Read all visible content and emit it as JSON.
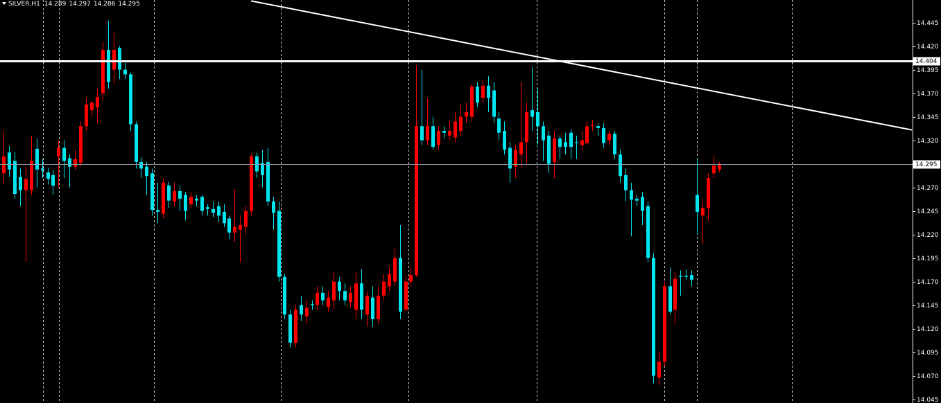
{
  "chart_data": {
    "type": "candlestick",
    "title": "SILVER,H1",
    "up_color": "#ff0000",
    "down_color": "#00e5ee",
    "ylim": [
      14.041,
      14.469
    ],
    "yticks": [
      14.445,
      {
        "value": 14.42,
        "label": "14.420"
      },
      14.395,
      {
        "value": 14.37,
        "label": "14.370"
      },
      14.345,
      {
        "value": 14.32,
        "label": "14.320"
      },
      14.295,
      {
        "value": 14.27,
        "label": "14.270"
      },
      14.245,
      {
        "value": 14.22,
        "label": "14.220"
      },
      14.195,
      {
        "value": 14.17,
        "label": "14.170"
      },
      14.145,
      {
        "value": 14.12,
        "label": "14.120"
      },
      14.095,
      {
        "value": 14.07,
        "label": "14.070"
      },
      14.045
    ],
    "hlines": [
      {
        "value": 14.404,
        "color": "#ffffff"
      },
      {
        "value": 14.295,
        "color": "#8a9aa8"
      }
    ],
    "trendline": {
      "x": [
        45,
        165
      ],
      "y": [
        14.468,
        14.331
      ],
      "color": "#ffffff"
    },
    "candles": [
      [
        14.285,
        14.33,
        14.274,
        14.303
      ],
      [
        14.307,
        14.314,
        14.281,
        14.289
      ],
      [
        14.298,
        14.308,
        14.258,
        14.263
      ],
      [
        14.281,
        14.29,
        14.25,
        14.267
      ],
      [
        14.267,
        14.292,
        14.191,
        14.279
      ],
      [
        14.267,
        14.325,
        14.262,
        14.298
      ],
      [
        14.311,
        14.322,
        14.27,
        14.289
      ],
      [
        14.29,
        14.3,
        14.28,
        14.288
      ],
      [
        14.286,
        14.291,
        14.273,
        14.279
      ],
      [
        14.283,
        14.288,
        14.262,
        14.272
      ],
      [
        14.303,
        14.32,
        14.27,
        14.312
      ],
      [
        14.312,
        14.32,
        14.28,
        14.298
      ],
      [
        14.301,
        14.305,
        14.27,
        14.292
      ],
      [
        14.292,
        14.31,
        14.288,
        14.3
      ],
      [
        14.296,
        14.34,
        14.292,
        14.335
      ],
      [
        14.335,
        14.365,
        14.33,
        14.358
      ],
      [
        14.352,
        14.362,
        14.345,
        14.36
      ],
      [
        14.355,
        14.375,
        14.338,
        14.366
      ],
      [
        14.37,
        14.425,
        14.362,
        14.416
      ],
      [
        14.416,
        14.447,
        14.375,
        14.382
      ],
      [
        14.395,
        14.435,
        14.38,
        14.416
      ],
      [
        14.418,
        14.42,
        14.385,
        14.395
      ],
      [
        14.395,
        14.402,
        14.385,
        14.39
      ],
      [
        14.39,
        14.392,
        14.33,
        14.337
      ],
      [
        14.337,
        14.34,
        14.29,
        14.297
      ],
      [
        14.297,
        14.302,
        14.28,
        14.29
      ],
      [
        14.292,
        14.297,
        14.262,
        14.282
      ],
      [
        14.285,
        14.29,
        14.24,
        14.246
      ],
      [
        14.246,
        14.275,
        14.232,
        14.244
      ],
      [
        14.242,
        14.28,
        14.237,
        14.275
      ],
      [
        14.272,
        14.276,
        14.248,
        14.256
      ],
      [
        14.255,
        14.275,
        14.25,
        14.266
      ],
      [
        14.266,
        14.272,
        14.245,
        14.258
      ],
      [
        14.262,
        14.265,
        14.235,
        14.245
      ],
      [
        14.252,
        14.265,
        14.248,
        14.26
      ],
      [
        14.258,
        14.262,
        14.25,
        14.256
      ],
      [
        14.26,
        14.262,
        14.24,
        14.245
      ],
      [
        14.249,
        14.252,
        14.24,
        14.247
      ],
      [
        14.247,
        14.255,
        14.238,
        14.243
      ],
      [
        14.25,
        14.255,
        14.233,
        14.24
      ],
      [
        14.244,
        14.252,
        14.228,
        14.232
      ],
      [
        14.237,
        14.24,
        14.215,
        14.222
      ],
      [
        14.222,
        14.268,
        14.212,
        14.228
      ],
      [
        14.225,
        14.24,
        14.19,
        14.23
      ],
      [
        14.228,
        14.25,
        14.22,
        14.245
      ],
      [
        14.245,
        14.306,
        14.24,
        14.303
      ],
      [
        14.303,
        14.307,
        14.28,
        14.287
      ],
      [
        14.296,
        14.31,
        14.27,
        14.283
      ],
      [
        14.297,
        14.312,
        14.25,
        14.255
      ],
      [
        14.255,
        14.26,
        14.225,
        14.243
      ],
      [
        14.245,
        14.255,
        14.17,
        14.175
      ],
      [
        14.175,
        14.178,
        14.13,
        14.135
      ],
      [
        14.135,
        14.14,
        14.1,
        14.105
      ],
      [
        14.105,
        14.145,
        14.1,
        14.14
      ],
      [
        14.145,
        14.155,
        14.128,
        14.135
      ],
      [
        14.133,
        14.15,
        14.125,
        14.142
      ],
      [
        14.146,
        14.15,
        14.14,
        14.145
      ],
      [
        14.145,
        14.165,
        14.14,
        14.158
      ],
      [
        14.158,
        14.165,
        14.145,
        14.15
      ],
      [
        14.143,
        14.16,
        14.138,
        14.153
      ],
      [
        14.15,
        14.18,
        14.14,
        14.17
      ],
      [
        14.17,
        14.175,
        14.15,
        14.16
      ],
      [
        14.16,
        14.168,
        14.145,
        14.15
      ],
      [
        14.148,
        14.165,
        14.142,
        14.158
      ],
      [
        14.14,
        14.18,
        14.13,
        14.168
      ],
      [
        14.168,
        14.183,
        14.13,
        14.14
      ],
      [
        14.135,
        14.16,
        14.122,
        14.155
      ],
      [
        14.153,
        14.165,
        14.122,
        14.13
      ],
      [
        14.13,
        14.165,
        14.125,
        14.155
      ],
      [
        14.155,
        14.178,
        14.15,
        14.17
      ],
      [
        14.165,
        14.185,
        14.16,
        14.178
      ],
      [
        14.17,
        14.205,
        14.165,
        14.195
      ],
      [
        14.195,
        14.23,
        14.13,
        14.138
      ],
      [
        14.14,
        14.175,
        14.138,
        14.17
      ],
      [
        14.17,
        14.185,
        14.165,
        14.177
      ],
      [
        14.177,
        14.4,
        14.175,
        14.335
      ],
      [
        14.335,
        14.395,
        14.315,
        14.32
      ],
      [
        14.32,
        14.365,
        14.315,
        14.335
      ],
      [
        14.335,
        14.345,
        14.31,
        14.313
      ],
      [
        14.315,
        14.335,
        14.31,
        14.33
      ],
      [
        14.33,
        14.335,
        14.322,
        14.328
      ],
      [
        14.325,
        14.34,
        14.32,
        14.33
      ],
      [
        14.323,
        14.35,
        14.318,
        14.34
      ],
      [
        14.33,
        14.358,
        14.325,
        14.345
      ],
      [
        14.345,
        14.36,
        14.338,
        14.35
      ],
      [
        14.345,
        14.38,
        14.34,
        14.377
      ],
      [
        14.377,
        14.382,
        14.355,
        14.36
      ],
      [
        14.365,
        14.385,
        14.36,
        14.378
      ],
      [
        14.378,
        14.388,
        14.35,
        14.365
      ],
      [
        14.373,
        14.382,
        14.338,
        14.345
      ],
      [
        14.343,
        14.35,
        14.32,
        14.328
      ],
      [
        14.33,
        14.34,
        14.305,
        14.31
      ],
      [
        14.312,
        14.318,
        14.275,
        14.29
      ],
      [
        14.292,
        14.315,
        14.28,
        14.31
      ],
      [
        14.305,
        14.382,
        14.29,
        14.318
      ],
      [
        14.318,
        14.36,
        14.295,
        14.35
      ],
      [
        14.352,
        14.398,
        14.33,
        14.345
      ],
      [
        14.35,
        14.375,
        14.315,
        14.335
      ],
      [
        14.335,
        14.34,
        14.298,
        14.32
      ],
      [
        14.325,
        14.33,
        14.285,
        14.295
      ],
      [
        14.297,
        14.33,
        14.28,
        14.322
      ],
      [
        14.322,
        14.325,
        14.3,
        14.313
      ],
      [
        14.318,
        14.328,
        14.305,
        14.313
      ],
      [
        14.328,
        14.332,
        14.3,
        14.313
      ],
      [
        14.318,
        14.325,
        14.3,
        14.317
      ],
      [
        14.315,
        14.33,
        14.31,
        14.32
      ],
      [
        14.317,
        14.34,
        14.315,
        14.335
      ],
      [
        14.335,
        14.342,
        14.33,
        14.336
      ],
      [
        14.335,
        14.338,
        14.325,
        14.333
      ],
      [
        14.333,
        14.338,
        14.312,
        14.317
      ],
      [
        14.32,
        14.33,
        14.315,
        14.327
      ],
      [
        14.327,
        14.33,
        14.3,
        14.305
      ],
      [
        14.305,
        14.31,
        14.275,
        14.282
      ],
      [
        14.283,
        14.29,
        14.255,
        14.267
      ],
      [
        14.267,
        14.275,
        14.218,
        14.257
      ],
      [
        14.258,
        14.262,
        14.25,
        14.256
      ],
      [
        14.26,
        14.265,
        14.23,
        14.245
      ],
      [
        14.25,
        14.255,
        14.19,
        14.195
      ],
      [
        14.195,
        14.2,
        14.062,
        14.07
      ],
      [
        14.068,
        14.095,
        14.06,
        14.085
      ],
      [
        14.085,
        14.17,
        14.08,
        14.165
      ],
      [
        14.165,
        14.185,
        14.135,
        14.138
      ],
      [
        14.14,
        14.18,
        14.125,
        14.173
      ],
      [
        14.176,
        14.182,
        14.155,
        14.175
      ],
      [
        14.176,
        14.183,
        14.172,
        14.175
      ],
      [
        14.177,
        14.182,
        14.165,
        14.172
      ],
      [
        14.262,
        14.3,
        14.22,
        14.244
      ],
      [
        14.24,
        14.255,
        14.21,
        14.248
      ],
      [
        14.248,
        14.285,
        14.235,
        14.28
      ],
      [
        14.285,
        14.303,
        14.28,
        14.293
      ],
      [
        14.289,
        14.297,
        14.286,
        14.295
      ]
    ]
  }
}
